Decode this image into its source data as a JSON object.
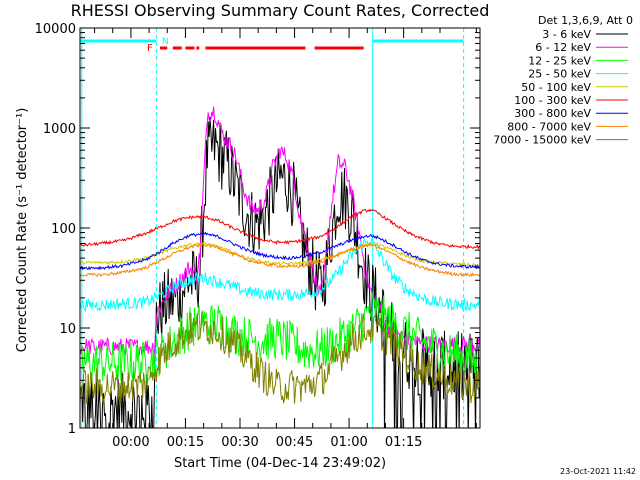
{
  "chart_data": {
    "type": "line",
    "title": "RHESSI Observing Summary Count Rates, Corrected",
    "xlabel": "Start Time (04-Dec-14 23:49:02)",
    "ylabel": "Corrected Count Rate (s⁻¹ detector⁻¹)",
    "yscale": "log",
    "ylim": [
      1,
      10000
    ],
    "xlim_minutes": [
      -14,
      96
    ],
    "x_unit": "minutes after 00:00 (05-Dec-14)",
    "x_ticks": [
      {
        "value": 0,
        "label": "00:00"
      },
      {
        "value": 15,
        "label": "00:15"
      },
      {
        "value": 30,
        "label": "00:30"
      },
      {
        "value": 45,
        "label": "00:45"
      },
      {
        "value": 60,
        "label": "01:00"
      },
      {
        "value": 75,
        "label": "01:15"
      }
    ],
    "y_ticks": [
      {
        "value": 1,
        "label": "1"
      },
      {
        "value": 10,
        "label": "10"
      },
      {
        "value": 100,
        "label": "100"
      },
      {
        "value": 1000,
        "label": "1000"
      },
      {
        "value": 10000,
        "label": "10000"
      }
    ],
    "legend_header": "Det 1,3,6,9, Att 0",
    "legend_position": "outside-right",
    "flags": {
      "F_label": "F",
      "N_label": "N"
    },
    "footer_date": "23-Oct-2021 11:42",
    "series": [
      {
        "name": "3 - 6 keV",
        "color": "#000000",
        "x": [
          -14,
          -8,
          -2,
          4,
          6.5,
          7,
          10,
          13,
          16,
          18,
          19,
          20,
          21,
          23,
          25,
          27,
          29,
          31,
          33,
          35,
          37,
          39,
          41,
          43,
          45,
          46,
          48,
          50,
          52,
          53,
          55,
          57,
          59,
          61,
          63,
          65,
          67,
          69,
          71,
          73,
          75,
          77,
          80,
          85,
          88,
          91,
          94,
          96
        ],
        "y": [
          2,
          1.6,
          1.6,
          1.6,
          1.8,
          13,
          18,
          20,
          30,
          28,
          40,
          150,
          550,
          650,
          520,
          420,
          250,
          170,
          120,
          110,
          140,
          220,
          320,
          300,
          200,
          110,
          60,
          35,
          25,
          30,
          80,
          220,
          200,
          130,
          55,
          28,
          20,
          14,
          9,
          8,
          6,
          5,
          4.6,
          4.2,
          4.2,
          4.2,
          4.2,
          4
        ]
      },
      {
        "name": "6 - 12 keV",
        "color": "#ff00ff",
        "x": [
          -14,
          -8,
          -2,
          4,
          6.5,
          7,
          10,
          13,
          16,
          18,
          19,
          20,
          21,
          23,
          25,
          27,
          29,
          31,
          33,
          35,
          37,
          39,
          41,
          43,
          45,
          46,
          48,
          50,
          52,
          53,
          55,
          57,
          59,
          61,
          63,
          65,
          67,
          69,
          71,
          73,
          75,
          77,
          80,
          85,
          88,
          91,
          94,
          96
        ],
        "y": [
          6.5,
          6.5,
          6.5,
          6.5,
          6.5,
          14,
          22,
          28,
          40,
          33,
          55,
          280,
          1400,
          1500,
          900,
          700,
          500,
          250,
          160,
          150,
          200,
          400,
          600,
          500,
          280,
          160,
          80,
          40,
          20,
          30,
          150,
          450,
          400,
          200,
          80,
          30,
          18,
          14,
          10,
          9,
          8,
          7.5,
          7,
          6.8,
          6.8,
          6.8,
          6.8,
          6.8
        ]
      },
      {
        "name": "12 - 25 keV",
        "color": "#00ff00",
        "x": [
          -14,
          -8,
          -2,
          4,
          8,
          12,
          16,
          20,
          24,
          28,
          32,
          36,
          40,
          44,
          48,
          52,
          56,
          60,
          64,
          66,
          68,
          72,
          76,
          80,
          84,
          88,
          92,
          96
        ],
        "y": [
          4.5,
          4.5,
          4.5,
          4.5,
          5.5,
          7.5,
          10,
          11,
          11,
          9,
          8,
          7.5,
          8,
          7,
          6,
          6,
          7,
          9,
          12,
          15,
          14,
          11,
          9,
          7.5,
          6.5,
          5.5,
          5,
          4.5
        ]
      },
      {
        "name": "25 - 50 keV",
        "color": "#00ffff",
        "x": [
          -14,
          -8,
          -2,
          4,
          8,
          12,
          16,
          20,
          24,
          28,
          32,
          36,
          40,
          44,
          48,
          52,
          56,
          60,
          64,
          66,
          68,
          72,
          76,
          80,
          84,
          88,
          92,
          96
        ],
        "y": [
          17,
          17,
          17.5,
          18,
          21,
          26,
          30,
          32,
          29,
          26,
          23,
          22,
          21.5,
          21.5,
          22,
          24,
          32,
          50,
          70,
          75,
          58,
          33,
          24,
          20,
          18,
          17.5,
          17,
          17
        ]
      },
      {
        "name": "50 - 100 keV",
        "color": "#cccc00",
        "x": [
          -14,
          -8,
          -2,
          4,
          8,
          12,
          16,
          20,
          24,
          28,
          32,
          36,
          40,
          44,
          48,
          52,
          56,
          60,
          64,
          66,
          68,
          72,
          76,
          80,
          84,
          88,
          92,
          96
        ],
        "y": [
          45,
          45,
          46,
          50,
          56,
          63,
          68,
          70,
          65,
          57,
          50,
          46,
          44,
          44,
          45,
          48,
          53,
          60,
          67,
          69,
          68,
          60,
          52,
          47,
          45,
          44,
          43,
          42
        ]
      },
      {
        "name": "100 - 300 keV",
        "color": "#ff0000",
        "x": [
          -14,
          -8,
          -2,
          4,
          8,
          12,
          16,
          20,
          24,
          28,
          32,
          36,
          40,
          44,
          48,
          52,
          56,
          60,
          64,
          66,
          68,
          72,
          76,
          80,
          84,
          88,
          92,
          96
        ],
        "y": [
          67,
          70,
          75,
          88,
          102,
          118,
          128,
          130,
          118,
          100,
          86,
          76,
          72,
          72,
          76,
          82,
          98,
          125,
          148,
          152,
          140,
          112,
          90,
          78,
          70,
          66,
          65,
          65
        ]
      },
      {
        "name": "300 - 800 keV",
        "color": "#0000ff",
        "x": [
          -14,
          -8,
          -2,
          4,
          8,
          12,
          16,
          20,
          24,
          28,
          32,
          36,
          40,
          44,
          48,
          52,
          56,
          60,
          64,
          66,
          68,
          72,
          76,
          80,
          84,
          88,
          92,
          96
        ],
        "y": [
          40,
          40,
          42,
          48,
          58,
          72,
          84,
          88,
          82,
          70,
          60,
          54,
          51,
          50,
          52,
          57,
          65,
          74,
          82,
          84,
          80,
          68,
          56,
          48,
          44,
          42,
          41,
          41
        ]
      },
      {
        "name": "800 - 7000 keV",
        "color": "#ff8000",
        "x": [
          -14,
          -8,
          -2,
          4,
          8,
          12,
          16,
          20,
          24,
          28,
          32,
          36,
          40,
          44,
          48,
          52,
          56,
          60,
          64,
          66,
          68,
          72,
          76,
          80,
          84,
          88,
          92,
          96
        ],
        "y": [
          34,
          34,
          36,
          40,
          47,
          56,
          64,
          68,
          64,
          55,
          48,
          44,
          42,
          41,
          42,
          46,
          52,
          60,
          66,
          68,
          64,
          55,
          46,
          40,
          37,
          35,
          34,
          34
        ]
      },
      {
        "name": "7000 - 15000 keV",
        "color": "#808000",
        "x": [
          -14,
          -8,
          -2,
          4,
          8,
          12,
          16,
          20,
          24,
          28,
          32,
          36,
          40,
          44,
          48,
          52,
          56,
          60,
          64,
          66,
          68,
          72,
          76,
          80,
          84,
          88,
          92,
          96
        ],
        "y": [
          2.6,
          2.6,
          2.6,
          2.8,
          5,
          7.5,
          9.5,
          10.5,
          9.5,
          7,
          5,
          3.5,
          2.6,
          2.6,
          2.6,
          3,
          4.5,
          7,
          9.5,
          10,
          9.5,
          7,
          5,
          4,
          3.5,
          3,
          2.7,
          2.6
        ]
      }
    ]
  }
}
